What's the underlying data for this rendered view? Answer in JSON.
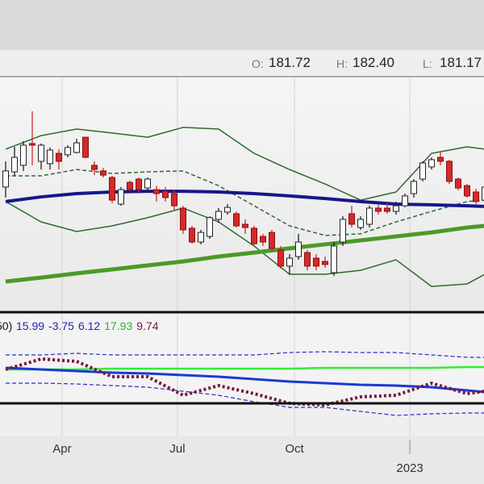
{
  "header": {
    "ohlc": [
      {
        "label": "O:",
        "value": "181.72"
      },
      {
        "label": "H:",
        "value": "182.40"
      },
      {
        "label": "L:",
        "value": "181.17"
      }
    ]
  },
  "chart_data": [
    {
      "type": "candlestick",
      "xlim": [
        -0.636,
        53.909
      ],
      "ylim": [
        0,
        100
      ],
      "up_color": "#ffffff",
      "down_color": "#d42a2a",
      "xticks": [
        {
          "value": 6.36,
          "label": "Apr"
        },
        {
          "value": 19.36,
          "label": "Jul"
        },
        {
          "value": 32.55,
          "label": "Oct"
        },
        {
          "value": 45.55,
          "label": "2023"
        }
      ],
      "x": [
        0,
        1,
        2,
        3,
        4,
        5,
        6,
        7,
        8,
        9,
        10,
        11,
        12,
        13,
        14,
        15,
        16,
        17,
        18,
        19,
        20,
        21,
        22,
        23,
        24,
        25,
        26,
        27,
        28,
        29,
        30,
        31,
        32,
        33,
        34,
        35,
        36,
        37,
        38,
        39,
        40,
        41,
        42,
        43,
        44,
        45,
        46,
        47,
        48,
        49,
        50,
        51,
        52,
        53,
        54
      ],
      "open": [
        52.8,
        59.3,
        62.1,
        71.4,
        63.8,
        62.8,
        67.2,
        66.6,
        67.6,
        74.1,
        62.1,
        59.7,
        56.9,
        45.5,
        54.8,
        56.2,
        52.4,
        51.7,
        51.0,
        50.0,
        43.8,
        35.2,
        29.3,
        31.7,
        39.0,
        42.1,
        41.4,
        36.9,
        35.2,
        31.7,
        33.4,
        25.9,
        19.0,
        23.1,
        24.8,
        22.4,
        21.0,
        16.2,
        29.3,
        41.4,
        35.5,
        36.9,
        43.8,
        43.8,
        42.4,
        44.8,
        50.0,
        56.2,
        61.4,
        65.5,
        63.8,
        56.2,
        53.4,
        50.7,
        47.2
      ],
      "high": [
        63.8,
        70.0,
        72.4,
        85.2,
        71.4,
        69.7,
        69.0,
        70.7,
        73.4,
        74.1,
        63.8,
        61.0,
        57.6,
        52.8,
        55.5,
        56.9,
        56.9,
        53.4,
        52.8,
        51.4,
        44.8,
        36.2,
        34.5,
        40.3,
        43.8,
        45.5,
        42.4,
        39.0,
        36.2,
        32.8,
        34.5,
        27.6,
        24.1,
        32.8,
        25.9,
        24.1,
        23.1,
        29.3,
        40.3,
        44.8,
        40.3,
        44.8,
        45.2,
        45.9,
        46.6,
        50.0,
        56.2,
        63.8,
        65.5,
        67.9,
        64.5,
        56.9,
        54.1,
        52.1,
        54.1
      ],
      "low": [
        48.3,
        57.6,
        59.7,
        62.1,
        60.3,
        60.3,
        60.3,
        65.5,
        67.2,
        65.2,
        57.9,
        56.9,
        45.9,
        44.8,
        51.0,
        50.0,
        50.7,
        46.6,
        46.6,
        43.1,
        32.8,
        28.6,
        28.3,
        30.7,
        37.6,
        41.0,
        35.5,
        32.8,
        27.6,
        27.6,
        25.2,
        17.9,
        15.5,
        21.7,
        17.2,
        17.2,
        18.3,
        14.8,
        27.6,
        35.5,
        34.5,
        35.5,
        41.0,
        41.4,
        41.0,
        44.1,
        48.3,
        55.2,
        60.3,
        62.1,
        54.1,
        51.4,
        48.3,
        45.5,
        45.9
      ],
      "close": [
        59.7,
        65.5,
        70.7,
        70.7,
        70.7,
        68.6,
        63.8,
        69.7,
        71.7,
        65.5,
        60.3,
        57.9,
        47.2,
        51.7,
        51.7,
        51.7,
        56.2,
        50.0,
        48.3,
        44.8,
        34.5,
        29.3,
        33.4,
        39.7,
        42.4,
        44.1,
        36.2,
        35.5,
        28.6,
        29.3,
        26.6,
        19.0,
        22.4,
        29.3,
        19.0,
        19.0,
        19.7,
        27.6,
        39.0,
        36.9,
        39.0,
        43.8,
        42.4,
        42.4,
        44.8,
        49.0,
        55.2,
        63.1,
        64.5,
        63.8,
        55.2,
        52.4,
        49.0,
        46.6,
        52.8
      ],
      "series": [
        {
          "color": "#2f6b2f",
          "width": 1.5,
          "style": "solid",
          "x": [
            0,
            4,
            8,
            12,
            16,
            20,
            24,
            28,
            32,
            36,
            40,
            44,
            48,
            52,
            54
          ],
          "values": [
            69.0,
            74.8,
            77.6,
            75.9,
            74.1,
            78.3,
            77.6,
            67.2,
            60.3,
            54.1,
            47.2,
            50.7,
            67.2,
            70.0,
            69.0
          ]
        },
        {
          "color": "#2f6b2f",
          "width": 1.5,
          "style": "solid",
          "x": [
            0,
            4,
            8,
            12,
            16,
            20,
            24,
            28,
            32,
            36,
            40,
            44,
            48,
            52,
            54
          ],
          "values": [
            46.6,
            37.9,
            33.8,
            36.2,
            39.7,
            43.8,
            37.9,
            27.6,
            15.5,
            15.5,
            17.2,
            21.7,
            10.3,
            11.4,
            15.5
          ]
        },
        {
          "color": "#2f6b2f",
          "width": 1.5,
          "style": "dashed",
          "x": [
            0,
            4,
            8,
            12,
            16,
            20,
            24,
            28,
            32,
            36,
            40,
            44,
            48,
            52,
            54
          ],
          "values": [
            57.6,
            57.6,
            60.3,
            58.6,
            59.3,
            59.7,
            53.4,
            44.8,
            36.2,
            32.1,
            32.8,
            37.9,
            42.4,
            46.6,
            47.2
          ]
        },
        {
          "color": "#4c9a2a",
          "width": 5,
          "style": "solid",
          "x": [
            0,
            4,
            8,
            12,
            16,
            20,
            24,
            28,
            32,
            36,
            40,
            44,
            48,
            52,
            54
          ],
          "values": [
            12.4,
            14.1,
            15.9,
            17.6,
            19.3,
            21.0,
            23.1,
            24.8,
            26.6,
            28.3,
            30.0,
            31.7,
            33.4,
            35.5,
            36.2
          ]
        },
        {
          "color": "#16168a",
          "width": 4,
          "style": "solid",
          "x": [
            0,
            4,
            8,
            12,
            16,
            20,
            24,
            28,
            32,
            36,
            40,
            44,
            48,
            52,
            54
          ],
          "values": [
            46.6,
            48.6,
            50.0,
            50.7,
            51.0,
            51.0,
            50.7,
            50.0,
            49.0,
            47.9,
            46.6,
            45.5,
            45.2,
            44.8,
            44.5
          ]
        }
      ]
    },
    {
      "type": "line",
      "xlim": [
        -0.636,
        53.909
      ],
      "ylim": [
        -10,
        45
      ],
      "legend_label": "50)",
      "legend_values": [
        {
          "text": "15.99",
          "color": "#2222bb"
        },
        {
          "text": "-3.75",
          "color": "#2222bb"
        },
        {
          "text": "6.12",
          "color": "#2222bb"
        },
        {
          "text": "17.93",
          "color": "#22bb22"
        },
        {
          "text": "9.74",
          "color": "#7a1840"
        }
      ],
      "series": [
        {
          "color": "#2a2ad0",
          "width": 1.2,
          "style": "dashed",
          "x": [
            0,
            4,
            8,
            12,
            16,
            20,
            24,
            28,
            32,
            36,
            40,
            44,
            48,
            52,
            54
          ],
          "values": [
            30,
            30,
            31,
            30,
            30,
            30,
            30,
            30,
            31.5,
            32,
            31.5,
            31.5,
            30,
            28.5,
            28.5
          ]
        },
        {
          "color": "#2a2ad0",
          "width": 1.2,
          "style": "dashed",
          "x": [
            0,
            4,
            8,
            12,
            16,
            20,
            24,
            28,
            32,
            36,
            40,
            44,
            48,
            52,
            54
          ],
          "values": [
            12.5,
            12.5,
            12,
            11,
            10,
            7.5,
            5,
            1,
            -2.5,
            -2.5,
            -5,
            -7.5,
            -6.5,
            -6,
            -6
          ]
        },
        {
          "color": "#33ee33",
          "width": 2.5,
          "style": "solid",
          "x": [
            0,
            4,
            8,
            12,
            16,
            20,
            24,
            28,
            32,
            36,
            40,
            44,
            48,
            52,
            54
          ],
          "values": [
            21,
            21,
            21,
            21.5,
            21.5,
            21.5,
            21.5,
            21.5,
            21.5,
            22,
            22,
            22,
            22,
            22.5,
            22.5
          ]
        },
        {
          "color": "#1a3ad0",
          "width": 3,
          "style": "solid",
          "x": [
            0,
            4,
            8,
            12,
            16,
            20,
            24,
            28,
            32,
            36,
            40,
            44,
            48,
            52,
            54
          ],
          "values": [
            22,
            21,
            20,
            19,
            18.5,
            17.5,
            16.5,
            15,
            13.5,
            12.5,
            11.5,
            11,
            10,
            8,
            7
          ]
        },
        {
          "color": "#7a1840",
          "width": 4,
          "style": "dotted",
          "x": [
            0,
            4,
            8,
            12,
            16,
            20,
            24,
            28,
            32,
            36,
            40,
            44,
            48,
            52,
            54
          ],
          "values": [
            21,
            27.5,
            26,
            16.5,
            16.5,
            5,
            11,
            6,
            0,
            -1,
            4,
            5,
            12.5,
            6,
            7.5
          ]
        }
      ]
    }
  ]
}
